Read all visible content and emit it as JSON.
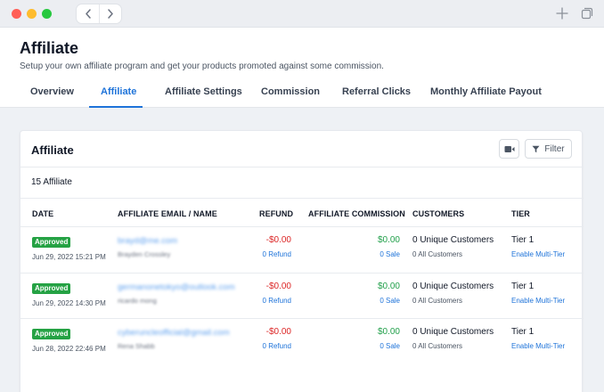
{
  "chrome": {
    "back_icon": "chevron-left-icon",
    "forward_icon": "chevron-right-icon",
    "new_tab_icon": "plus-icon",
    "tabs_overview_icon": "tabs-icon"
  },
  "header": {
    "title": "Affiliate",
    "subtitle": "Setup your own affiliate program and get your products promoted against some commission."
  },
  "tabs": [
    {
      "label": "Overview",
      "active": false
    },
    {
      "label": "Affiliate",
      "active": true
    },
    {
      "label": "Affiliate Settings",
      "active": false
    },
    {
      "label": "Commission",
      "active": false
    },
    {
      "label": "Referral Clicks",
      "active": false
    },
    {
      "label": "Monthly Affiliate Payout",
      "active": false
    }
  ],
  "card": {
    "title": "Affiliate",
    "video_icon": "video-camera-icon",
    "filter_label": "Filter",
    "filter_icon": "funnel-icon",
    "count_label": "15 Affiliate"
  },
  "table": {
    "columns": [
      "DATE",
      "AFFILIATE EMAIL / NAME",
      "REFUND",
      "AFFILIATE COMMISSION",
      "CUSTOMERS",
      "TIER"
    ],
    "rows": [
      {
        "status": "Approved",
        "date": "Jun 29, 2022 15:21 PM",
        "email": "brayd@me.com",
        "name": "Brayden Crossley",
        "refund_amount": "-$0.00",
        "refund_link": "0 Refund",
        "commission_amount": "$0.00",
        "commission_link": "0 Sale",
        "customers": "0 Unique Customers",
        "customers_sub": "0 All Customers",
        "tier": "Tier 1",
        "tier_link": "Enable Multi-Tier"
      },
      {
        "status": "Approved",
        "date": "Jun 29, 2022 14:30 PM",
        "email": "germanonetokyo@outlook.com",
        "name": "ricardo mong",
        "refund_amount": "-$0.00",
        "refund_link": "0 Refund",
        "commission_amount": "$0.00",
        "commission_link": "0 Sale",
        "customers": "0 Unique Customers",
        "customers_sub": "0 All Customers",
        "tier": "Tier 1",
        "tier_link": "Enable Multi-Tier"
      },
      {
        "status": "Approved",
        "date": "Jun 28, 2022 22:46 PM",
        "email": "cyberuncleofficial@gmail.com",
        "name": "Rena Shabb",
        "refund_amount": "-$0.00",
        "refund_link": "0 Refund",
        "commission_amount": "$0.00",
        "commission_link": "0 Sale",
        "customers": "0 Unique Customers",
        "customers_sub": "0 All Customers",
        "tier": "Tier 1",
        "tier_link": "Enable Multi-Tier"
      }
    ]
  },
  "colors": {
    "accent": "#1e73d9",
    "approved": "#25a244",
    "refund": "#dc2626",
    "commission": "#22a04b"
  }
}
